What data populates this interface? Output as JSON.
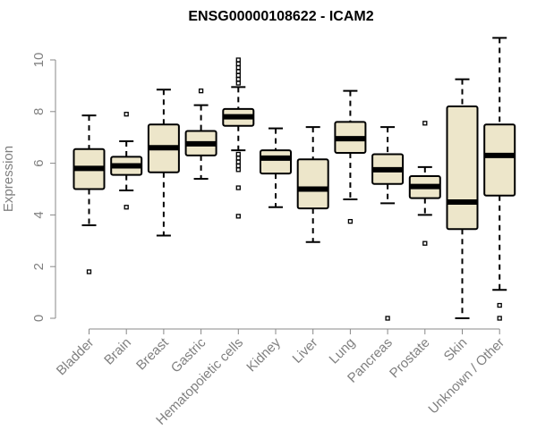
{
  "chart_data": {
    "type": "boxplot",
    "title": "ENSG00000108622 - ICAM2",
    "xlabel": "",
    "ylabel": "Expression",
    "ylim": [
      0,
      10.5
    ],
    "yticks": [
      0,
      2,
      4,
      6,
      8,
      10
    ],
    "grid": false,
    "colors": {
      "box_fill": "#ede6ca",
      "stroke": "#000000",
      "axis": "#888888",
      "text": "#808080"
    },
    "categories": [
      "Bladder",
      "Brain",
      "Breast",
      "Gastric",
      "Hematopoietic cells",
      "Kidney",
      "Liver",
      "Lung",
      "Pancreas",
      "Prostate",
      "Skin",
      "Unknown / Other"
    ],
    "boxes": [
      {
        "category": "Bladder",
        "whisker_low": 3.6,
        "q1": 5.0,
        "median": 5.8,
        "q3": 6.55,
        "whisker_high": 7.85,
        "outliers": [
          1.8
        ]
      },
      {
        "category": "Brain",
        "whisker_low": 4.95,
        "q1": 5.55,
        "median": 5.9,
        "q3": 6.25,
        "whisker_high": 6.85,
        "outliers": [
          4.3,
          7.9
        ]
      },
      {
        "category": "Breast",
        "whisker_low": 3.2,
        "q1": 5.65,
        "median": 6.6,
        "q3": 7.5,
        "whisker_high": 8.85,
        "outliers": []
      },
      {
        "category": "Gastric",
        "whisker_low": 5.4,
        "q1": 6.3,
        "median": 6.75,
        "q3": 7.25,
        "whisker_high": 8.25,
        "outliers": [
          8.8
        ]
      },
      {
        "category": "Hematopoietic cells",
        "whisker_low": 6.5,
        "q1": 7.45,
        "median": 7.8,
        "q3": 8.1,
        "whisker_high": 8.95,
        "outliers": [
          3.95,
          5.05,
          5.75,
          5.9,
          6.05,
          6.2,
          6.35,
          9.1,
          9.25,
          9.4,
          9.55,
          9.7,
          9.85,
          10.0
        ]
      },
      {
        "category": "Kidney",
        "whisker_low": 4.3,
        "q1": 5.6,
        "median": 6.2,
        "q3": 6.5,
        "whisker_high": 7.35,
        "outliers": []
      },
      {
        "category": "Liver",
        "whisker_low": 2.95,
        "q1": 4.25,
        "median": 5.0,
        "q3": 6.15,
        "whisker_high": 7.4,
        "outliers": []
      },
      {
        "category": "Lung",
        "whisker_low": 4.6,
        "q1": 6.4,
        "median": 6.95,
        "q3": 7.6,
        "whisker_high": 8.8,
        "outliers": [
          3.75
        ]
      },
      {
        "category": "Pancreas",
        "whisker_low": 4.45,
        "q1": 5.2,
        "median": 5.75,
        "q3": 6.35,
        "whisker_high": 7.4,
        "outliers": [
          0.0
        ]
      },
      {
        "category": "Prostate",
        "whisker_low": 4.0,
        "q1": 4.65,
        "median": 5.1,
        "q3": 5.5,
        "whisker_high": 5.85,
        "outliers": [
          2.9,
          7.55
        ]
      },
      {
        "category": "Skin",
        "whisker_low": 0.0,
        "q1": 3.45,
        "median": 4.5,
        "q3": 8.2,
        "whisker_high": 9.25,
        "outliers": []
      },
      {
        "category": "Unknown / Other",
        "whisker_low": 1.1,
        "q1": 4.75,
        "median": 6.3,
        "q3": 7.5,
        "whisker_high": 10.85,
        "outliers": [
          0.0,
          0.5
        ]
      }
    ]
  }
}
